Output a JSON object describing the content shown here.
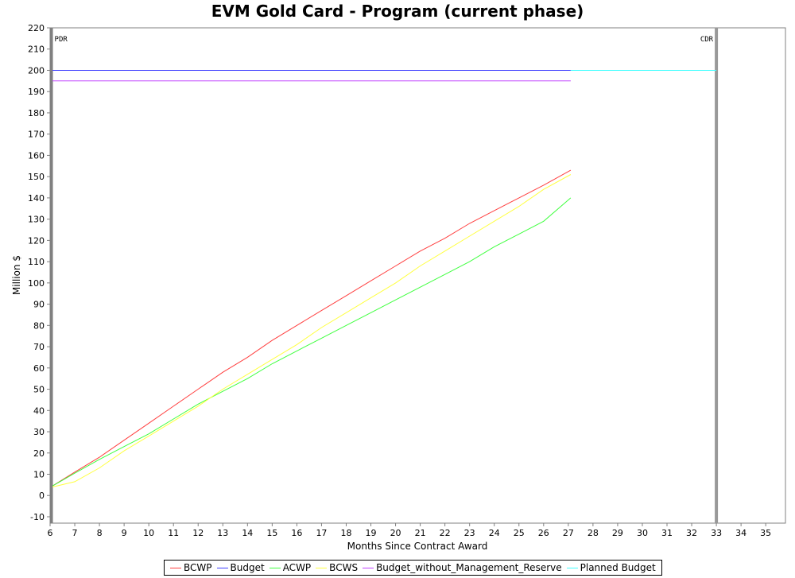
{
  "chart_data": {
    "type": "line",
    "title": "EVM Gold Card - Program (current phase)",
    "xlabel": "Months Since Contract Award",
    "ylabel": "Million $",
    "xlim": [
      6,
      35.8
    ],
    "ylim": [
      -13,
      220
    ],
    "xticks": [
      6,
      7,
      8,
      9,
      10,
      11,
      12,
      13,
      14,
      15,
      16,
      17,
      18,
      19,
      20,
      21,
      22,
      23,
      24,
      25,
      26,
      27,
      28,
      29,
      30,
      31,
      32,
      33,
      34,
      35
    ],
    "yticks": [
      -10,
      0,
      10,
      20,
      30,
      40,
      50,
      60,
      70,
      80,
      90,
      100,
      110,
      120,
      130,
      140,
      150,
      160,
      170,
      180,
      190,
      200,
      210,
      220
    ],
    "grid": false,
    "legend_position": "bottom",
    "markers": [
      {
        "label": "PDR",
        "x": 6.05,
        "color": "#808080"
      },
      {
        "label": "CDR",
        "x": 33,
        "color": "#999999"
      }
    ],
    "series": [
      {
        "name": "BCWP",
        "color": "#ff4040",
        "x": [
          6.1,
          7,
          8,
          9,
          10,
          11,
          12,
          13,
          14,
          15,
          16,
          17,
          18,
          19,
          20,
          21,
          22,
          23,
          24,
          25,
          26,
          27.1
        ],
        "y": [
          4.5,
          11,
          18,
          26,
          34,
          42,
          50,
          58,
          65,
          73,
          80,
          87,
          94,
          101,
          108,
          115,
          121,
          128,
          134,
          140,
          146,
          153
        ]
      },
      {
        "name": "Budget",
        "color": "#4040ff",
        "x": [
          6.1,
          27.1
        ],
        "y": [
          200,
          200
        ]
      },
      {
        "name": "ACWP",
        "color": "#40ff40",
        "x": [
          6.1,
          7,
          8,
          9,
          10,
          11,
          12,
          13,
          14,
          15,
          16,
          17,
          18,
          19,
          20,
          21,
          22,
          23,
          24,
          25,
          26,
          27.1
        ],
        "y": [
          4.5,
          10.5,
          17,
          23,
          29,
          36,
          43,
          49,
          55,
          62,
          68,
          74,
          80,
          86,
          92,
          98,
          104,
          110,
          117,
          123,
          129,
          140
        ]
      },
      {
        "name": "BCWS",
        "color": "#ffff40",
        "x": [
          6.1,
          7,
          8,
          9,
          10,
          11,
          12,
          13,
          14,
          15,
          16,
          17,
          18,
          19,
          20,
          21,
          22,
          23,
          24,
          25,
          26,
          27.1
        ],
        "y": [
          4,
          6.5,
          13,
          21,
          28,
          35,
          42,
          50,
          57,
          64,
          71,
          79,
          86,
          93,
          100,
          108,
          115,
          122,
          129,
          136,
          144,
          151
        ]
      },
      {
        "name": "Budget_without_Management_Reserve",
        "color": "#c040ff",
        "x": [
          6.1,
          27.1
        ],
        "y": [
          195,
          195
        ]
      },
      {
        "name": "Planned Budget",
        "color": "#40ffff",
        "x": [
          27.1,
          33
        ],
        "y": [
          200,
          200
        ]
      }
    ]
  }
}
